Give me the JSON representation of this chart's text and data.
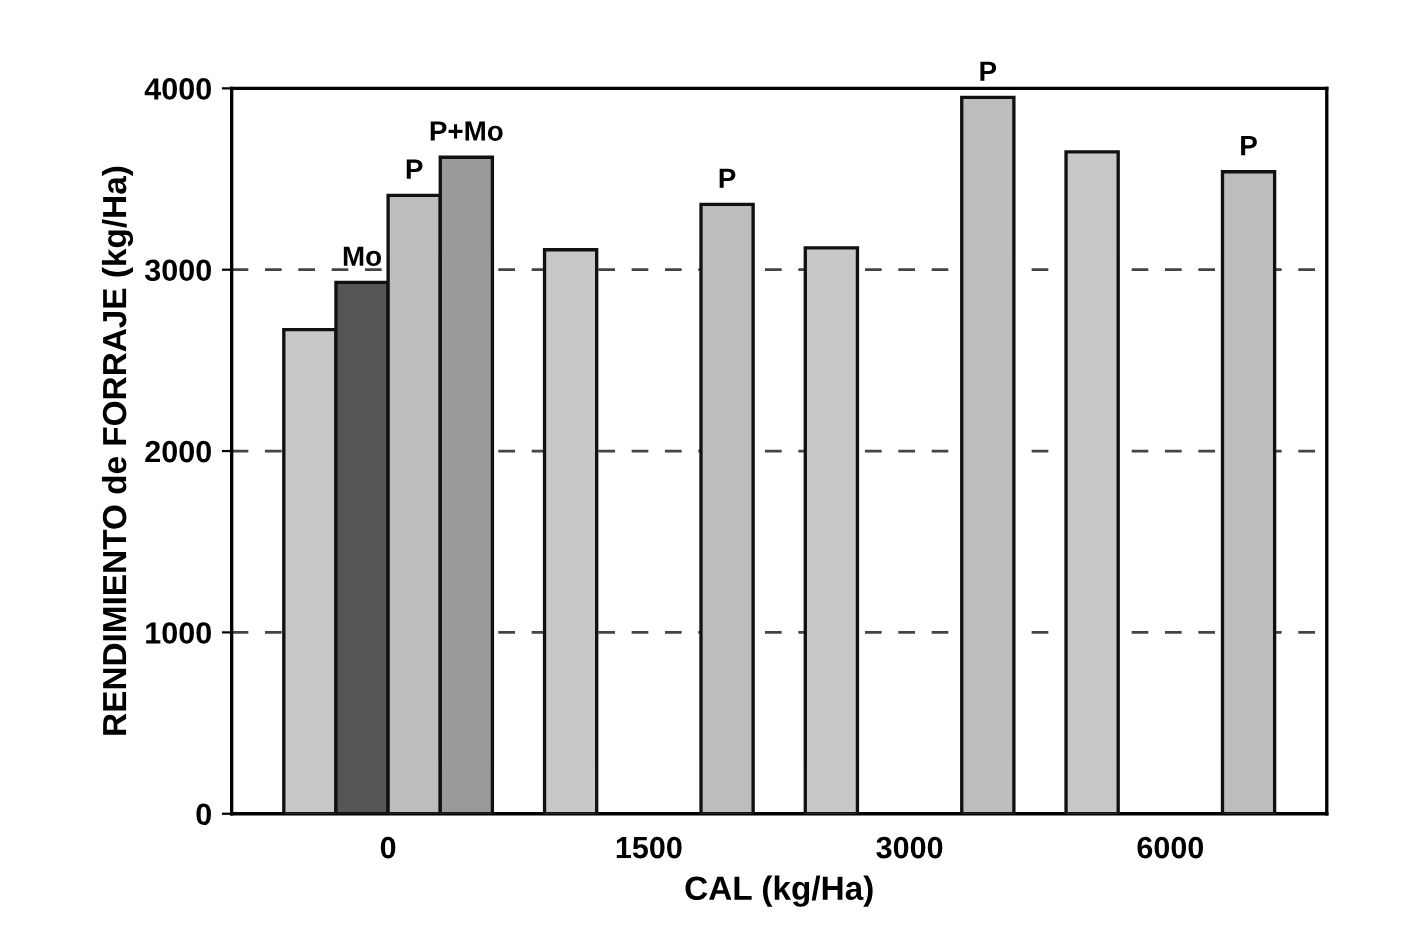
{
  "chart_data": {
    "type": "bar",
    "xlabel": "CAL (kg/Ha)",
    "ylabel": "RENDIMIENTO de FORRAJE (kg/Ha)",
    "categories": [
      "0",
      "1500",
      "3000",
      "6000"
    ],
    "series": [
      {
        "color": "#c8c8c8",
        "values": [
          2670,
          3110,
          3120,
          3650
        ]
      },
      {
        "name": "Mo",
        "color": "#555555",
        "values": [
          2930,
          null,
          null,
          null
        ]
      },
      {
        "name": "P",
        "color": "#bdbdbd",
        "values": [
          3410,
          3360,
          3950,
          3540
        ]
      },
      {
        "name": "P+Mo",
        "color": "#9a9a9a",
        "values": [
          3620,
          null,
          null,
          null
        ]
      }
    ],
    "ylim": [
      0,
      4000
    ],
    "yticks": [
      0,
      1000,
      2000,
      3000,
      4000
    ],
    "grid": "y",
    "legend": false
  }
}
